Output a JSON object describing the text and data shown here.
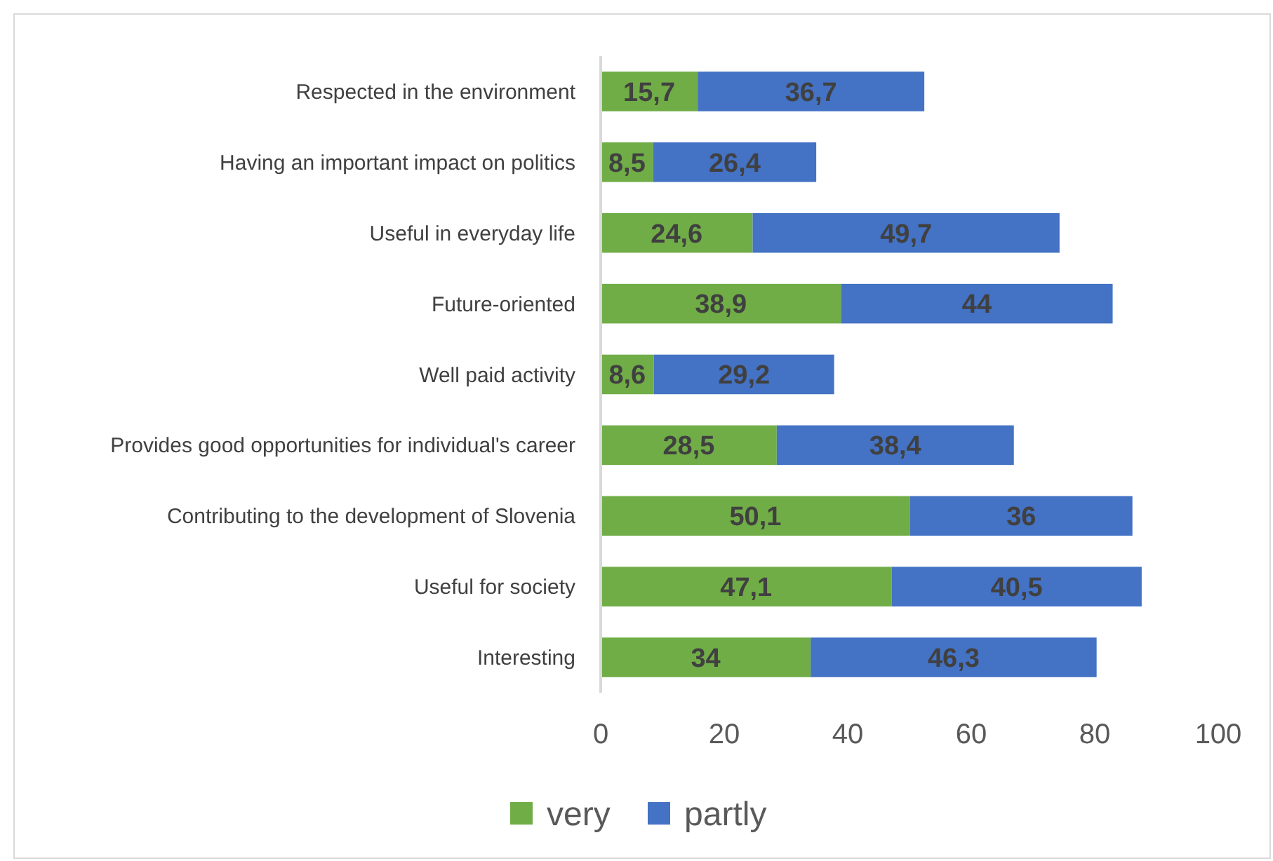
{
  "chart_data": {
    "type": "bar",
    "orientation": "horizontal",
    "stacked": true,
    "categories": [
      "Respected in the environment",
      "Having an important impact on politics",
      "Useful in everyday life",
      "Future-oriented",
      "Well paid activity",
      "Provides good opportunities for individual's career",
      "Contributing to the development of Slovenia",
      "Useful for society",
      "Interesting"
    ],
    "series": [
      {
        "name": "very",
        "color": "#70ad47",
        "values": [
          15.7,
          8.5,
          24.6,
          38.9,
          8.6,
          28.5,
          50.1,
          47.1,
          34
        ],
        "value_labels": [
          "15,7",
          "8,5",
          "24,6",
          "38,9",
          "8,6",
          "28,5",
          "50,1",
          "47,1",
          "34"
        ]
      },
      {
        "name": "partly",
        "color": "#4472c4",
        "values": [
          36.7,
          26.4,
          49.7,
          44,
          29.2,
          38.4,
          36,
          40.5,
          46.3
        ],
        "value_labels": [
          "36,7",
          "26,4",
          "49,7",
          "44",
          "29,2",
          "38,4",
          "36",
          "40,5",
          "46,3"
        ]
      }
    ],
    "xlim": [
      0,
      100
    ],
    "xticks": [
      0,
      20,
      40,
      60,
      80,
      100
    ],
    "grid": false,
    "legend": "bottom"
  }
}
